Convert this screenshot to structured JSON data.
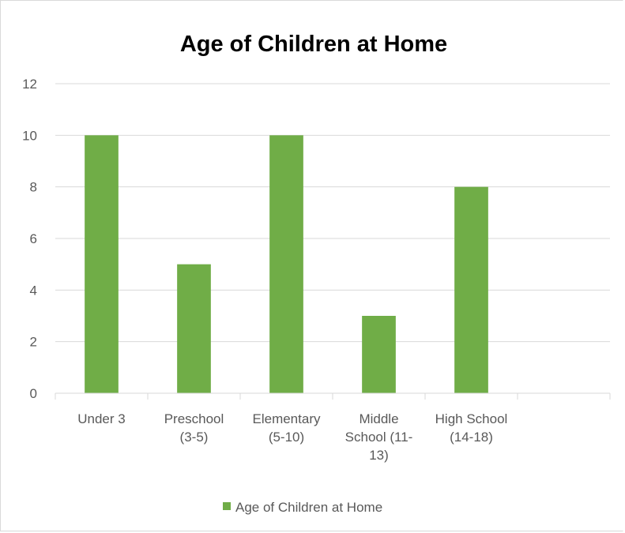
{
  "chart_data": {
    "type": "bar",
    "title": "Age of Children at Home",
    "categories": [
      [
        "Under 3"
      ],
      [
        "Preschool",
        "(3-5)"
      ],
      [
        "Elementary",
        "(5-10)"
      ],
      [
        "Middle",
        "School (11-",
        "13)"
      ],
      [
        "High School",
        "(14-18)"
      ],
      [
        ""
      ]
    ],
    "series": [
      {
        "name": "Age of Children at Home",
        "values": [
          10,
          5,
          10,
          3,
          8,
          null
        ],
        "color": "#70ad47"
      }
    ],
    "ylim": [
      0,
      12
    ],
    "yticks": [
      "0",
      "2",
      "4",
      "6",
      "8",
      "10",
      "12"
    ],
    "grid": true,
    "legend_position": "bottom"
  }
}
